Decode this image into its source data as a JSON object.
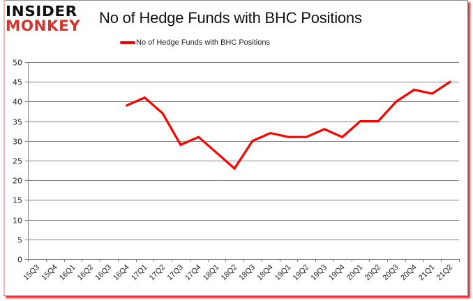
{
  "header": {
    "logo_line1": "INSIDER",
    "logo_line2": "MONKEY",
    "title": "No of Hedge Funds with BHC Positions"
  },
  "legend": {
    "label": "No of Hedge Funds with BHC Positions",
    "color": "#ff0000"
  },
  "colors": {
    "line": "#ff0000",
    "grid": "#808080",
    "logo_red": "#d9332b",
    "frame_shadow": "#ff2a2a"
  },
  "chart_data": {
    "type": "line",
    "title": "No of Hedge Funds with BHC Positions",
    "xlabel": "",
    "ylabel": "",
    "ylim": [
      0,
      50
    ],
    "yticks": [
      0,
      5,
      10,
      15,
      20,
      25,
      30,
      35,
      40,
      45,
      50
    ],
    "grid": true,
    "legend_position": "top",
    "categories": [
      "15Q3",
      "15Q4",
      "16Q1",
      "16Q2",
      "16Q3",
      "16Q4",
      "17Q1",
      "17Q2",
      "17Q3",
      "17Q4",
      "18Q1",
      "18Q2",
      "18Q3",
      "18Q4",
      "19Q1",
      "19Q2",
      "19Q3",
      "19Q4",
      "20Q1",
      "20Q2",
      "20Q3",
      "20Q4",
      "21Q1",
      "21Q2"
    ],
    "series": [
      {
        "name": "No of Hedge Funds with BHC Positions",
        "values": [
          null,
          null,
          null,
          null,
          null,
          39,
          41,
          37,
          29,
          31,
          27,
          23,
          30,
          32,
          31,
          31,
          33,
          31,
          35,
          35,
          40,
          43,
          42,
          45
        ]
      }
    ]
  }
}
